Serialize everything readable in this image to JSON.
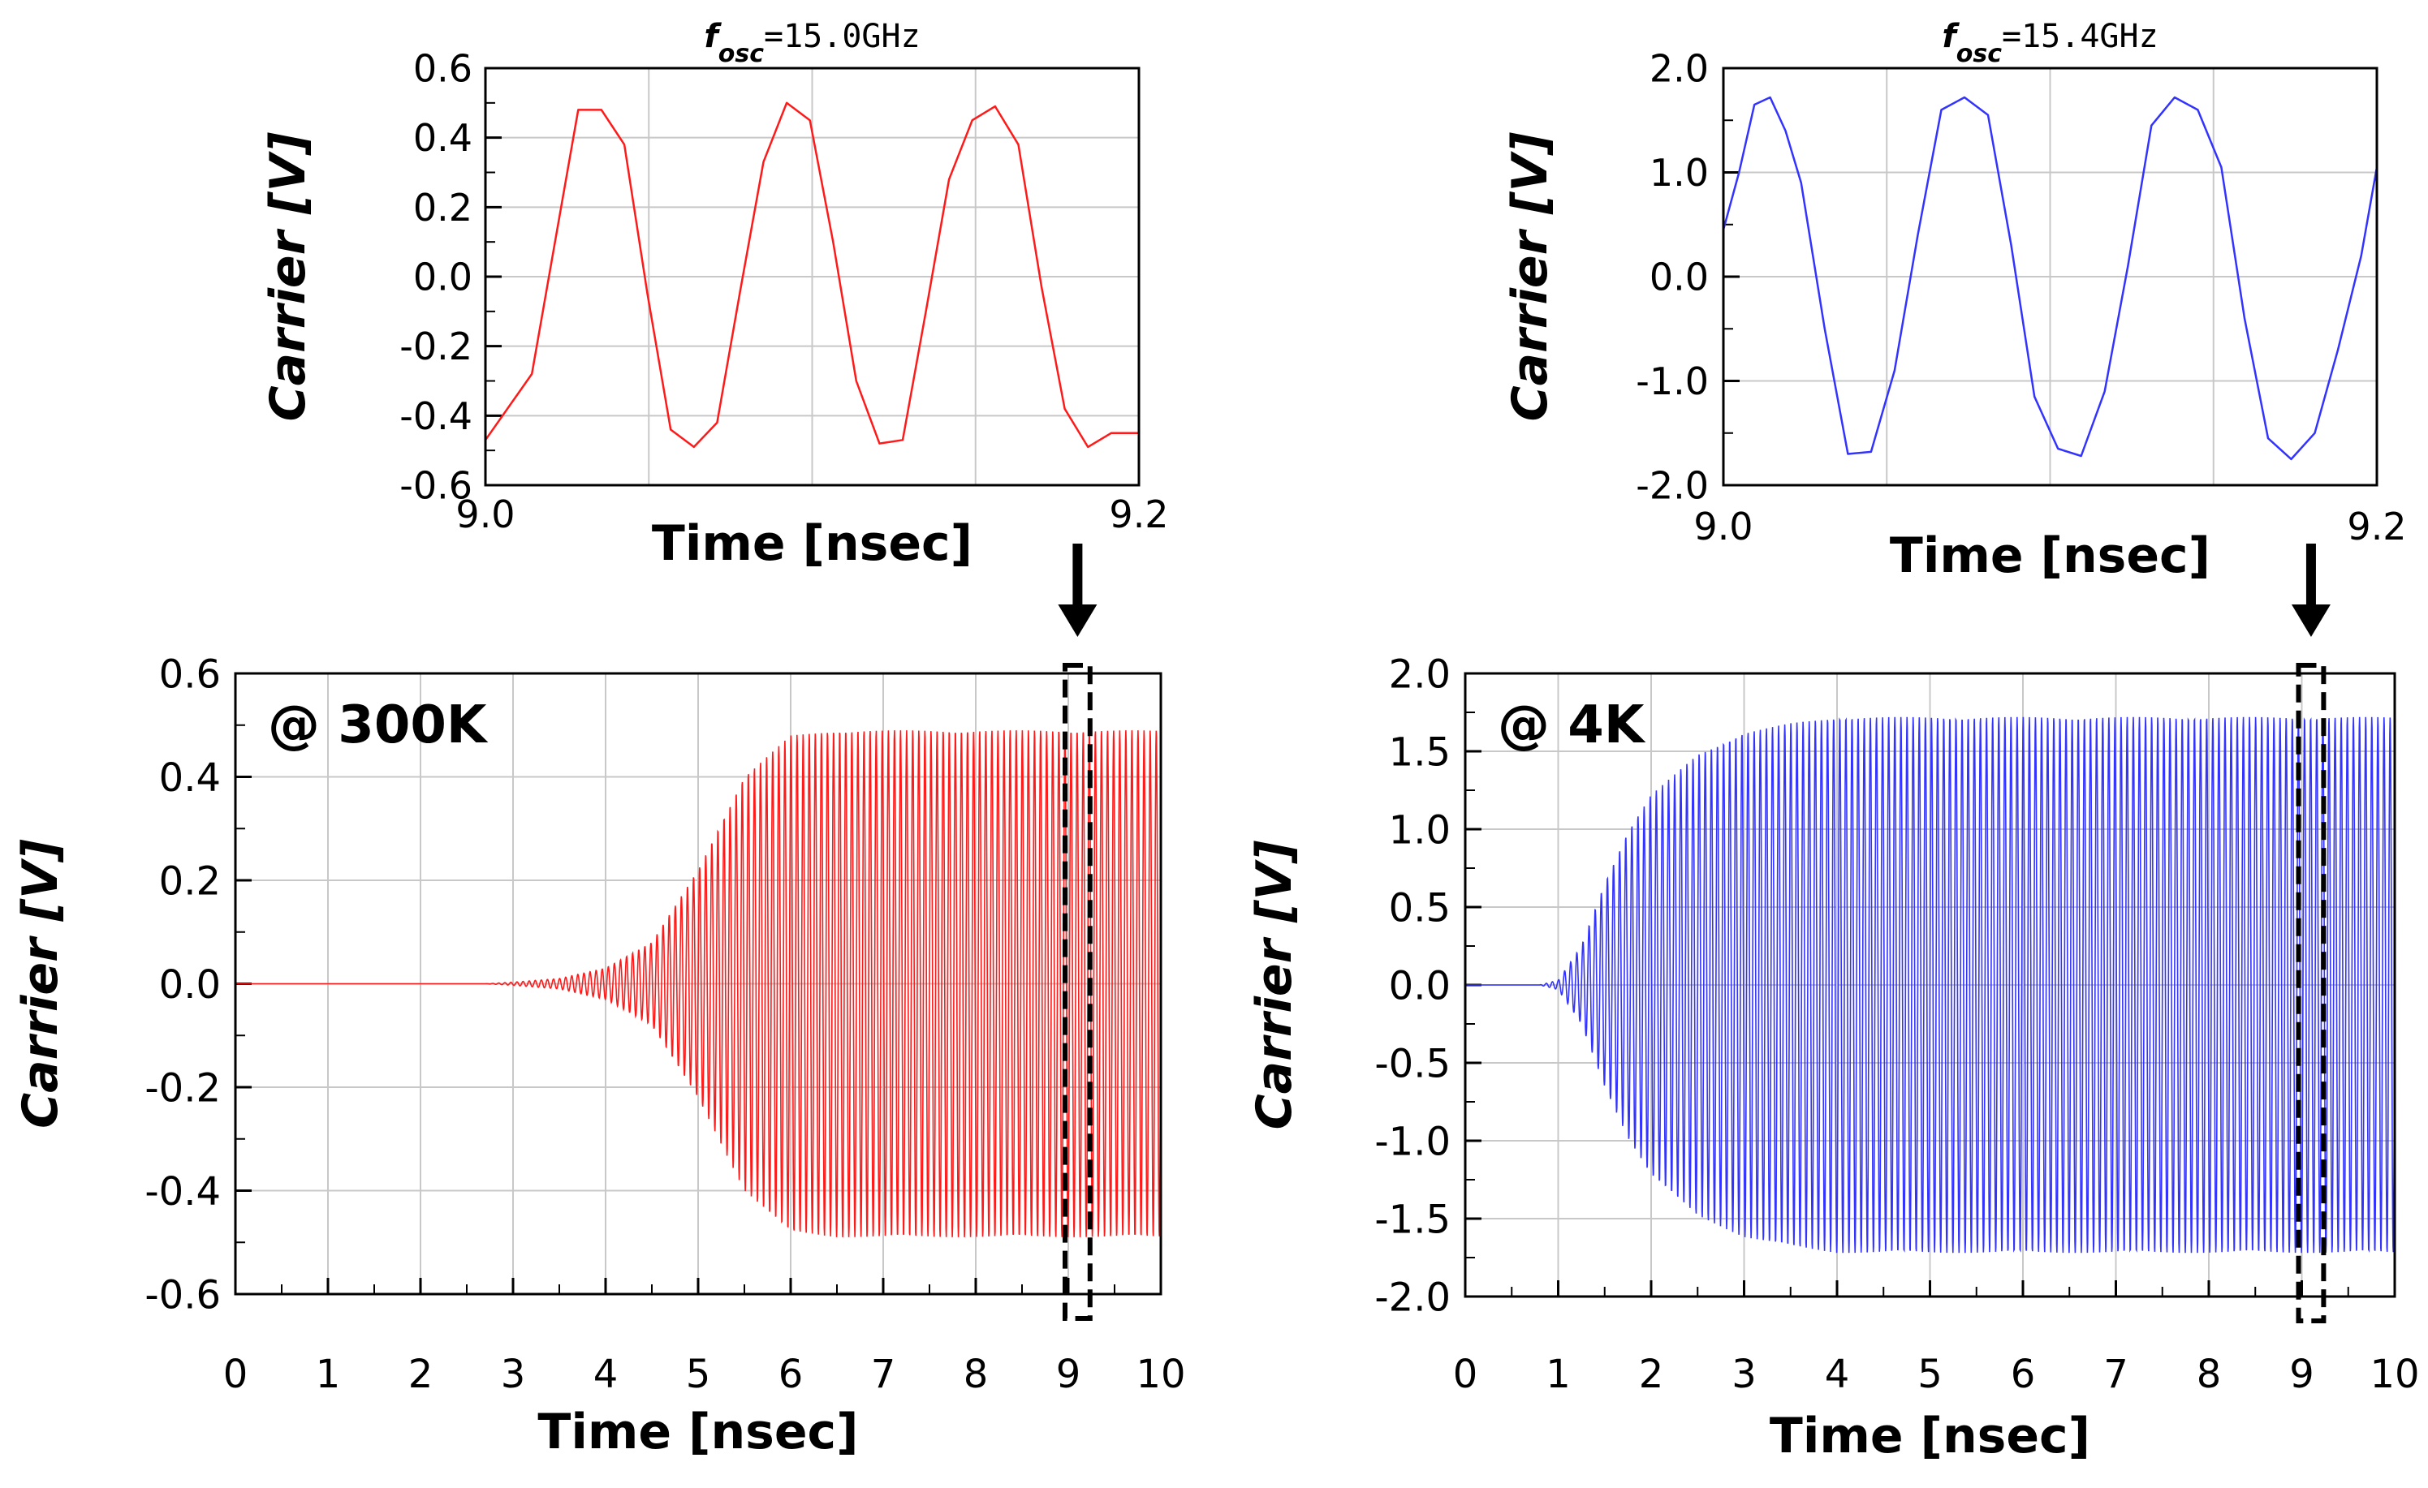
{
  "colors": {
    "red_series": "#ff1a1a",
    "blue_series": "#3333ff",
    "grid": "#c8c8c8",
    "axes": "#000000"
  },
  "chart_data": [
    {
      "id": "inset-300k",
      "type": "line",
      "title": "f_osc=15.0GHz",
      "title_parts": {
        "f": "f",
        "sub": "osc",
        "rest": "=15.0GHz"
      },
      "xlabel": "Time [nsec]",
      "ylabel": "Carrier [V]",
      "xlim": [
        9.0,
        9.2
      ],
      "ylim": [
        -0.6,
        0.6
      ],
      "xtick_labels": [
        "9.0",
        "9.2"
      ],
      "ytick_labels": [
        "0.6",
        "0.4",
        "0.2",
        "0.0",
        "-0.2",
        "-0.4",
        "-0.6"
      ],
      "color": "#ff1a1a",
      "grid": true,
      "series": [
        {
          "x": [
            9.0,
            9.0142,
            9.0213,
            9.0284,
            9.0355,
            9.0425,
            9.0496,
            9.0567,
            9.0638,
            9.0709,
            9.078,
            9.0851,
            9.0922,
            9.0993,
            9.1064,
            9.1135,
            9.1206,
            9.1277,
            9.1348,
            9.1419,
            9.149,
            9.156,
            9.1631,
            9.1702,
            9.1773,
            9.1844,
            9.1915,
            9.2
          ],
          "y": [
            -0.47,
            -0.28,
            0.1,
            0.48,
            0.48,
            0.38,
            -0.05,
            -0.44,
            -0.49,
            -0.42,
            -0.04,
            0.33,
            0.5,
            0.45,
            0.1,
            -0.3,
            -0.48,
            -0.47,
            -0.1,
            0.28,
            0.45,
            0.49,
            0.38,
            -0.03,
            -0.38,
            -0.49,
            -0.45,
            -0.45
          ]
        }
      ]
    },
    {
      "id": "inset-4k",
      "type": "line",
      "title": "f_osc=15.4GHz",
      "title_parts": {
        "f": "f",
        "sub": "osc",
        "rest": "=15.4GHz"
      },
      "xlabel": "Time [nsec]",
      "ylabel": "Carrier [V]",
      "xlim": [
        9.0,
        9.2
      ],
      "ylim": [
        -2.0,
        2.0
      ],
      "xtick_labels": [
        "9.0",
        "9.2"
      ],
      "ytick_labels": [
        "2.0",
        "1.0",
        "0.0",
        "-1.0",
        "-2.0"
      ],
      "color": "#3333ff",
      "grid": true,
      "series": [
        {
          "x": [
            9.0,
            9.0048,
            9.0095,
            9.0143,
            9.019,
            9.0238,
            9.031,
            9.0381,
            9.0452,
            9.0524,
            9.0595,
            9.0667,
            9.0738,
            9.081,
            9.0881,
            9.0952,
            9.1024,
            9.1095,
            9.1167,
            9.1238,
            9.131,
            9.1381,
            9.1452,
            9.1524,
            9.1595,
            9.1667,
            9.1738,
            9.181,
            9.1881,
            9.1952,
            9.2
          ],
          "y": [
            0.45,
            1.0,
            1.65,
            1.72,
            1.4,
            0.9,
            -0.5,
            -1.7,
            -1.68,
            -0.9,
            0.4,
            1.6,
            1.72,
            1.55,
            0.3,
            -1.15,
            -1.65,
            -1.72,
            -1.1,
            0.1,
            1.45,
            1.72,
            1.6,
            1.05,
            -0.4,
            -1.55,
            -1.75,
            -1.5,
            -0.7,
            0.2,
            1.05
          ]
        }
      ]
    },
    {
      "id": "main-300k",
      "type": "line",
      "annotation": "@ 300K",
      "xlabel": "Time [nsec]",
      "ylabel": "Carrier [V]",
      "xlim": [
        0,
        10
      ],
      "ylim": [
        -0.6,
        0.6
      ],
      "xtick_labels": [
        "0",
        "1",
        "2",
        "3",
        "4",
        "5",
        "6",
        "7",
        "8",
        "9",
        "10"
      ],
      "ytick_labels": [
        "0.6",
        "0.4",
        "0.2",
        "0.0",
        "-0.2",
        "-0.4",
        "-0.6"
      ],
      "color": "#ff1a1a",
      "grid": true,
      "highlight_window": [
        9.0,
        9.2
      ],
      "envelope": {
        "t": [
          0,
          2.7,
          3.0,
          3.5,
          4.0,
          4.5,
          5.0,
          5.5,
          6.0,
          6.5,
          10
        ],
        "amplitude": [
          0,
          0,
          0.003,
          0.01,
          0.03,
          0.08,
          0.22,
          0.4,
          0.48,
          0.49,
          0.49
        ]
      }
    },
    {
      "id": "main-4k",
      "type": "line",
      "annotation": "@ 4K",
      "xlabel": "Time [nsec]",
      "ylabel": "Carrier [V]",
      "xlim": [
        0,
        10
      ],
      "ylim": [
        -2.0,
        2.0
      ],
      "xtick_labels": [
        "0",
        "1",
        "2",
        "3",
        "4",
        "5",
        "6",
        "7",
        "8",
        "9",
        "10"
      ],
      "ytick_labels": [
        "2.0",
        "1.5",
        "1.0",
        "0.5",
        "0.0",
        "-0.5",
        "-1.0",
        "-1.5",
        "-2.0"
      ],
      "color": "#3333ff",
      "grid": true,
      "highlight_window": [
        9.0,
        9.2
      ],
      "envelope": {
        "t": [
          0,
          0.8,
          1.0,
          1.25,
          1.5,
          1.75,
          2.0,
          2.5,
          3.0,
          3.5,
          4.0,
          10
        ],
        "amplitude": [
          0,
          0,
          0.03,
          0.25,
          0.65,
          0.98,
          1.22,
          1.48,
          1.62,
          1.68,
          1.72,
          1.72
        ]
      }
    }
  ]
}
